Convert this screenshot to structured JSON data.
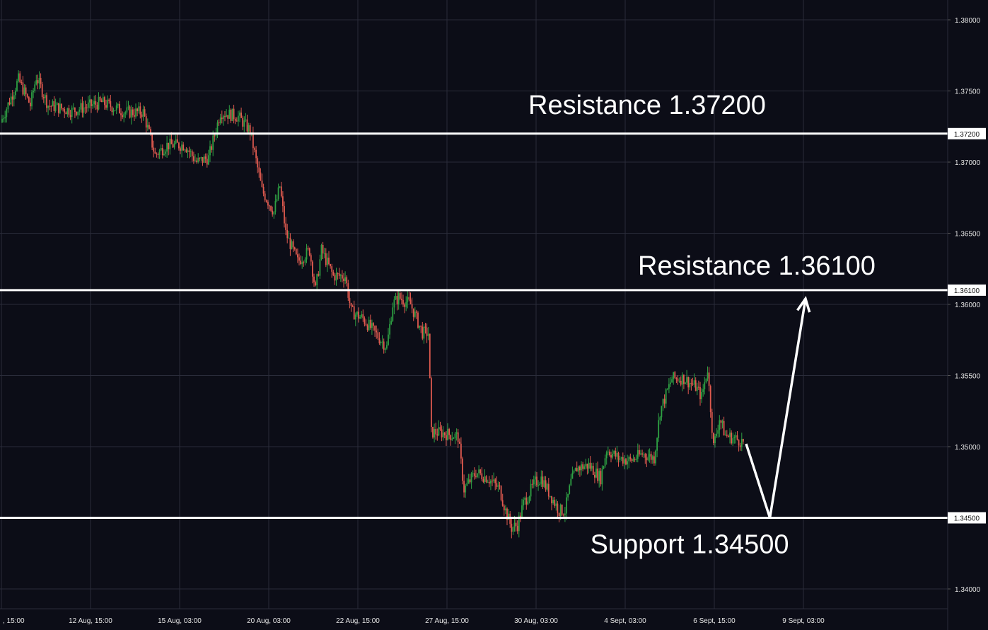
{
  "chart_data": {
    "type": "line",
    "subtype": "candlestick",
    "title": "",
    "colors": {
      "background": "#0c0d17",
      "grid": "#2a2c3a",
      "up": "#2ea043",
      "down": "#e05a4f",
      "level_line": "#ffffff",
      "axis_text": "#e6e6e6"
    },
    "y_axis": {
      "position": "right",
      "range": [
        1.3385,
        1.381
      ],
      "ticks": [
        "1.38000",
        "1.37500",
        "1.37000",
        "1.36500",
        "1.36000",
        "1.35500",
        "1.35000",
        "1.34000"
      ]
    },
    "x_axis": {
      "ticks": [
        ", 15:00",
        "12 Aug, 15:00",
        "15 Aug, 03:00",
        "20 Aug, 03:00",
        "22 Aug, 15:00",
        "27 Aug, 15:00",
        "30 Aug, 03:00",
        "4 Sept, 03:00",
        "6 Sept, 15:00",
        "9 Sept, 03:00"
      ],
      "tick_index": [
        0,
        15,
        30,
        45,
        60,
        75,
        90,
        105,
        120,
        135
      ],
      "total_slots": 160
    },
    "price_series": {
      "name": "",
      "anchors": [
        [
          0,
          1.3728
        ],
        [
          3,
          1.3758
        ],
        [
          5,
          1.374
        ],
        [
          6,
          1.376
        ],
        [
          8,
          1.374
        ],
        [
          12,
          1.3736
        ],
        [
          17,
          1.3742
        ],
        [
          21,
          1.3735
        ],
        [
          24,
          1.3735
        ],
        [
          26,
          1.3705
        ],
        [
          28,
          1.3712
        ],
        [
          31,
          1.3712
        ],
        [
          33,
          1.37
        ],
        [
          35,
          1.3703
        ],
        [
          37,
          1.3735
        ],
        [
          40,
          1.3732
        ],
        [
          42,
          1.3722
        ],
        [
          44,
          1.368
        ],
        [
          46,
          1.3665
        ],
        [
          47,
          1.3683
        ],
        [
          48,
          1.365
        ],
        [
          50,
          1.363
        ],
        [
          52,
          1.3638
        ],
        [
          53,
          1.361
        ],
        [
          54,
          1.3638
        ],
        [
          56,
          1.362
        ],
        [
          58,
          1.362
        ],
        [
          59,
          1.3595
        ],
        [
          61,
          1.359
        ],
        [
          63,
          1.358
        ],
        [
          65,
          1.357
        ],
        [
          66,
          1.36
        ],
        [
          67,
          1.3605
        ],
        [
          69,
          1.36
        ],
        [
          71,
          1.358
        ],
        [
          72,
          1.358
        ],
        [
          72.5,
          1.351
        ],
        [
          74,
          1.351
        ],
        [
          77,
          1.3507
        ],
        [
          78,
          1.347
        ],
        [
          80,
          1.3482
        ],
        [
          82,
          1.3478
        ],
        [
          84,
          1.347
        ],
        [
          85,
          1.3455
        ],
        [
          86,
          1.3443
        ],
        [
          87,
          1.3445
        ],
        [
          88,
          1.346
        ],
        [
          90,
          1.3475
        ],
        [
          91,
          1.3478
        ],
        [
          92,
          1.347
        ],
        [
          94,
          1.3455
        ],
        [
          95,
          1.3455
        ],
        [
          96,
          1.3475
        ],
        [
          97,
          1.3485
        ],
        [
          99,
          1.3487
        ],
        [
          101,
          1.3478
        ],
        [
          102,
          1.3498
        ],
        [
          104,
          1.3492
        ],
        [
          106,
          1.349
        ],
        [
          108,
          1.3495
        ],
        [
          110,
          1.3492
        ],
        [
          111,
          1.3525
        ],
        [
          113,
          1.3548
        ],
        [
          115,
          1.3548
        ],
        [
          117,
          1.3542
        ],
        [
          118,
          1.3535
        ],
        [
          119,
          1.3555
        ],
        [
          120,
          1.35
        ],
        [
          121,
          1.352
        ],
        [
          122,
          1.3508
        ],
        [
          124,
          1.3505
        ],
        [
          125,
          1.3503
        ]
      ],
      "start_slot": 0,
      "end_slot": 125
    },
    "levels": [
      {
        "label": "Resistance 1.37200",
        "value": 1.372,
        "tag": "1.37200"
      },
      {
        "label": "Resistance 1.36100",
        "value": 1.361,
        "tag": "1.36100"
      },
      {
        "label": "Support 1.34500",
        "value": 1.345,
        "tag": "1.34500"
      }
    ],
    "projection": {
      "points": [
        [
          125,
          1.3502
        ],
        [
          129,
          1.345
        ],
        [
          135,
          1.3604
        ]
      ],
      "arrow": true
    },
    "grid": true,
    "legend": "none"
  }
}
